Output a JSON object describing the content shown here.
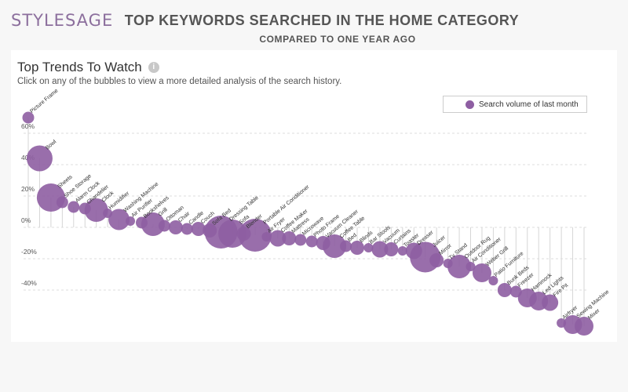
{
  "header": {
    "logo": "STYLESAGE",
    "title": "TOP KEYWORDS SEARCHED IN THE HOME CATEGORY",
    "subtitle": "COMPARED TO ONE YEAR AGO"
  },
  "section": {
    "title": "Top Trends To Watch",
    "info_icon": "i",
    "instructions": "Click on any of the bubbles to view a more detailed analysis of the search history."
  },
  "colors": {
    "bubble": "#8e5ea2",
    "grid": "#dddddd",
    "stem": "#d6d6d6",
    "text": "#555555"
  },
  "chart_data": {
    "type": "scatter",
    "legend": {
      "label": "Search volume of last month",
      "placement": "top-right"
    },
    "y_ticks": [
      "60%",
      "40%",
      "20%",
      "0%",
      "-20%",
      "-40%"
    ],
    "y_tick_values": [
      60,
      40,
      20,
      0,
      -20,
      -40
    ],
    "ylim": [
      -65,
      71
    ],
    "grid": true,
    "points": [
      {
        "label": "Picture Frame",
        "y": 70,
        "size": 3
      },
      {
        "label": "Bowl",
        "y": 44,
        "size": 9
      },
      {
        "label": "Sheets",
        "y": 19,
        "size": 10
      },
      {
        "label": "Shoe Storage",
        "y": 16,
        "size": 3
      },
      {
        "label": "Alarm Clock",
        "y": 13,
        "size": 3
      },
      {
        "label": "Chandelier",
        "y": 12,
        "size": 3
      },
      {
        "label": "Clock",
        "y": 11,
        "size": 8
      },
      {
        "label": "Humidifier",
        "y": 9,
        "size": 2
      },
      {
        "label": "Washing Machine",
        "y": 5,
        "size": 7
      },
      {
        "label": "Air Purifier",
        "y": 4,
        "size": 2
      },
      {
        "label": "Bookshelves",
        "y": 3,
        "size": 3
      },
      {
        "label": "Grill",
        "y": 2,
        "size": 8
      },
      {
        "label": "Ottoman",
        "y": 1,
        "size": 3
      },
      {
        "label": "Chair",
        "y": 0,
        "size": 4
      },
      {
        "label": "Candle",
        "y": -1,
        "size": 3
      },
      {
        "label": "Couch",
        "y": -1,
        "size": 4
      },
      {
        "label": "Sofa Bed",
        "y": -2,
        "size": 4
      },
      {
        "label": "Dressing Table",
        "y": -3,
        "size": 12
      },
      {
        "label": "Sofa",
        "y": -4,
        "size": 10
      },
      {
        "label": "Blender",
        "y": -4,
        "size": 4
      },
      {
        "label": "Portable Air Conditioner",
        "y": -5,
        "size": 12
      },
      {
        "label": "Air Fryer",
        "y": -6,
        "size": 2
      },
      {
        "label": "Coffee Maker",
        "y": -7,
        "size": 5
      },
      {
        "label": "Mattress",
        "y": -7,
        "size": 4
      },
      {
        "label": "Microwave",
        "y": -8,
        "size": 3
      },
      {
        "label": "Photo Frame",
        "y": -9,
        "size": 3
      },
      {
        "label": "Vacuum Cleaner",
        "y": -10,
        "size": 4
      },
      {
        "label": "Coffee Table",
        "y": -12,
        "size": 8
      },
      {
        "label": "Bed",
        "y": -12,
        "size": 3
      },
      {
        "label": "Blinds",
        "y": -13,
        "size": 4
      },
      {
        "label": "Bar Stools",
        "y": -13,
        "size": 2
      },
      {
        "label": "Vacuum",
        "y": -14,
        "size": 5
      },
      {
        "label": "Curtains",
        "y": -14,
        "size": 4
      },
      {
        "label": "Toaster",
        "y": -15,
        "size": 2
      },
      {
        "label": "Dresser",
        "y": -15,
        "size": 5
      },
      {
        "label": "Juicer",
        "y": -19,
        "size": 11
      },
      {
        "label": "Mirror",
        "y": -21,
        "size": 4
      },
      {
        "label": "Tv Stand",
        "y": -23,
        "size": 2
      },
      {
        "label": "Outdoor Rug",
        "y": -25,
        "size": 8
      },
      {
        "label": "Air Conditioner",
        "y": -25,
        "size": 2
      },
      {
        "label": "Weber Grill",
        "y": -29,
        "size": 6
      },
      {
        "label": "Patio Furniture",
        "y": -34,
        "size": 2
      },
      {
        "label": "Bunk Beds",
        "y": -40,
        "size": 4
      },
      {
        "label": "Freezer",
        "y": -41,
        "size": 3
      },
      {
        "label": "Hammock",
        "y": -45,
        "size": 6
      },
      {
        "label": "Led Lights",
        "y": -47,
        "size": 6
      },
      {
        "label": "Fire Pit",
        "y": -48,
        "size": 5
      },
      {
        "label": "Airfryer",
        "y": -61,
        "size": 2
      },
      {
        "label": "Sewing Machine",
        "y": -62,
        "size": 6
      },
      {
        "label": "Mixer",
        "y": -63,
        "size": 6
      }
    ]
  }
}
